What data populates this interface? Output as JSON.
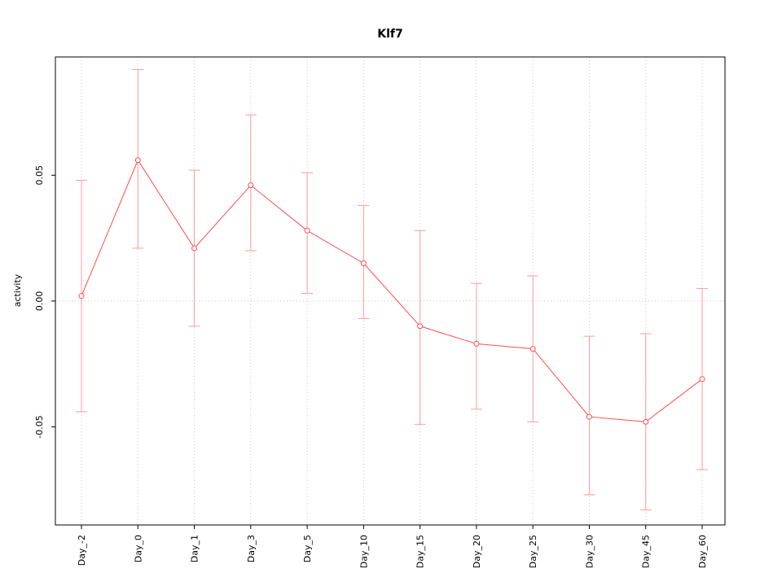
{
  "chart_data": {
    "type": "line",
    "title": "Klf7",
    "xlabel": "",
    "ylabel": "activity",
    "legend": "none",
    "marker": "open-circle",
    "categories": [
      "Day_-2",
      "Day_0",
      "Day_1",
      "Day_3",
      "Day_5",
      "Day_10",
      "Day_15",
      "Day_20",
      "Day_25",
      "Day_30",
      "Day_45",
      "Day_60"
    ],
    "series": [
      {
        "name": "Klf7 activity",
        "values": [
          0.002,
          0.056,
          0.021,
          0.046,
          0.028,
          0.015,
          -0.01,
          -0.017,
          -0.019,
          -0.046,
          -0.048,
          -0.031
        ],
        "upper": [
          0.048,
          0.092,
          0.052,
          0.074,
          0.051,
          0.038,
          0.028,
          0.007,
          0.01,
          -0.014,
          -0.013,
          0.005
        ],
        "lower": [
          -0.044,
          0.021,
          -0.01,
          0.02,
          0.003,
          -0.007,
          -0.049,
          -0.043,
          -0.048,
          -0.077,
          -0.083,
          -0.067
        ]
      }
    ],
    "yticks": [
      {
        "value": 0.05,
        "label": "0.05"
      },
      {
        "value": 0.0,
        "label": "0.00"
      },
      {
        "value": -0.05,
        "label": "-0.05"
      }
    ],
    "ylim": [
      -0.089,
      0.097
    ],
    "grid": {
      "vertical": "dotted-at-each-category",
      "horizontal_at": 0
    },
    "colors": {
      "series": "#ff4b4b",
      "error_bar": "#ff9a9a",
      "grid": "#c6c6c6",
      "frame": "#000000",
      "text": "#000000",
      "background": "#ffffff"
    }
  }
}
